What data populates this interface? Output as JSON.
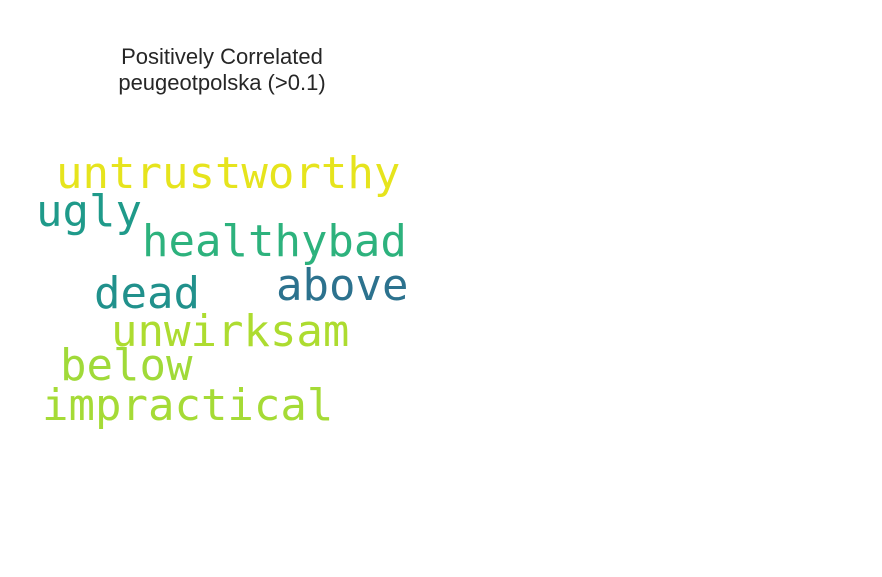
{
  "title": {
    "line1": "Positively Correlated",
    "line2": "peugeotpolska (>0.1)"
  },
  "words": [
    {
      "text": "untrustworthy",
      "color": "#e6e41d"
    },
    {
      "text": "ugly",
      "color": "#1f9a8a"
    },
    {
      "text": "healthybad",
      "color": "#2db27d"
    },
    {
      "text": "above",
      "color": "#2c728e"
    },
    {
      "text": "dead",
      "color": "#21918c"
    },
    {
      "text": "unwirksam",
      "color": "#addc30"
    },
    {
      "text": "below",
      "color": "#a0da39"
    },
    {
      "text": "impractical",
      "color": "#a5db36"
    }
  ]
}
